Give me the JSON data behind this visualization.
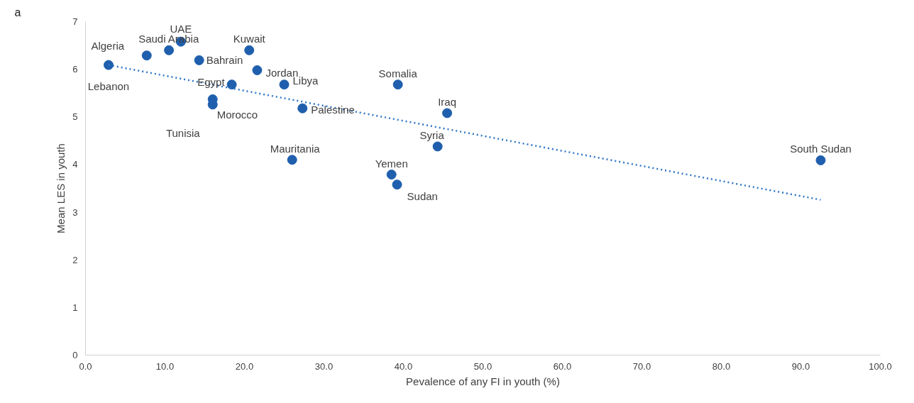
{
  "chart_data": {
    "type": "scatter",
    "xlabel": "Pevalence of any FI in youth (%)",
    "ylabel": "Mean LES in youth",
    "x": [
      2.9,
      7.7,
      10.5,
      12.0,
      14.3,
      20.6,
      21.6,
      18.4,
      16.0,
      16.0,
      25.0,
      27.3,
      26.0,
      39.3,
      45.5,
      44.3,
      38.5,
      39.2,
      92.5
    ],
    "series": [
      {
        "color": "#1f5fad",
        "values": [
          6.09,
          6.29,
          6.4,
          6.58,
          6.19,
          6.4,
          5.98,
          5.68,
          5.37,
          5.26,
          5.68,
          5.18,
          4.1,
          5.68,
          5.08,
          4.38,
          3.79,
          3.58,
          4.09
        ]
      },
      {
        "type": "line",
        "color": "#2e75c6",
        "line_style": "dotted",
        "marker": "none",
        "x": [
          2.9,
          92.5
        ],
        "values": [
          6.09,
          3.26
        ]
      }
    ],
    "marker": "circle",
    "annotations": [
      "a",
      {
        "text": "Lebanon",
        "x": 2.9,
        "y": 6.09
      },
      {
        "text": "Algeria",
        "x": 7.7,
        "y": 6.29
      },
      {
        "text": "Saudi Arabia",
        "x": 10.5,
        "y": 6.4
      },
      {
        "text": "UAE",
        "x": 12.0,
        "y": 6.58
      },
      {
        "text": "Bahrain",
        "x": 14.3,
        "y": 6.19
      },
      {
        "text": "Kuwait",
        "x": 20.6,
        "y": 6.4
      },
      {
        "text": "Jordan",
        "x": 21.6,
        "y": 5.98
      },
      {
        "text": "Egypt",
        "x": 18.4,
        "y": 5.68
      },
      {
        "text": "Morocco",
        "x": 16.0,
        "y": 5.37
      },
      {
        "text": "Tunisia",
        "x": 16.0,
        "y": 5.26
      },
      {
        "text": "Libya",
        "x": 25.0,
        "y": 5.68
      },
      {
        "text": "Palestine",
        "x": 27.3,
        "y": 5.18
      },
      {
        "text": "Mauritania",
        "x": 26.0,
        "y": 4.1
      },
      {
        "text": "Somalia",
        "x": 39.3,
        "y": 5.68
      },
      {
        "text": "Iraq",
        "x": 45.5,
        "y": 5.08
      },
      {
        "text": "Syria",
        "x": 44.3,
        "y": 4.38
      },
      {
        "text": "Yemen",
        "x": 38.5,
        "y": 3.79
      },
      {
        "text": "Sudan",
        "x": 39.2,
        "y": 3.58
      },
      {
        "text": "South Sudan",
        "x": 92.5,
        "y": 4.09
      }
    ],
    "xlim": [
      0,
      100
    ],
    "xticks": [
      {
        "value": 0,
        "label": "0.0"
      },
      {
        "value": 10,
        "label": "10.0"
      },
      {
        "value": 20,
        "label": "20.0"
      },
      {
        "value": 30,
        "label": "30.0"
      },
      {
        "value": 40,
        "label": "40.0"
      },
      {
        "value": 50,
        "label": "50.0"
      },
      {
        "value": 60,
        "label": "60.0"
      },
      {
        "value": 70,
        "label": "70.0"
      },
      {
        "value": 80,
        "label": "80.0"
      },
      {
        "value": 90,
        "label": "90.0"
      },
      {
        "value": 100,
        "label": "100.0"
      }
    ],
    "ylim": [
      0,
      7
    ],
    "yticks": [
      0,
      1,
      2,
      3,
      4,
      5,
      6,
      7
    ],
    "grid": false
  }
}
